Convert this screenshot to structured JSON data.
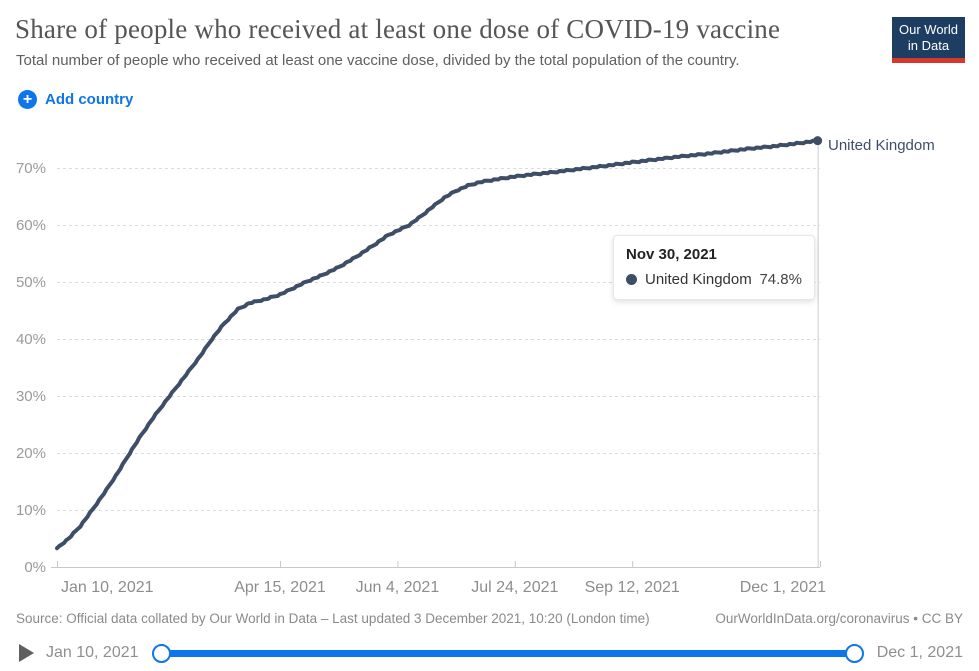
{
  "header": {
    "title": "Share of people who received at least one dose of COVID-19 vaccine",
    "subtitle": "Total number of people who received at least one vaccine dose, divided by the total population of the country.",
    "logo": {
      "line1": "Our World",
      "line2": "in Data"
    }
  },
  "controls": {
    "add_country_label": "Add country",
    "plus_icon": "+"
  },
  "colors": {
    "accent_blue": "#0e76e8",
    "series_line": "#3d4e66",
    "logo_bg": "#1d3d63",
    "logo_red": "#d7382e",
    "grid": "#dcdcdc",
    "axis": "#c8c8c8",
    "y_tick_text": "#9a9a9a",
    "x_tick_text": "#8d8d8d"
  },
  "chart_data": {
    "type": "line",
    "title": "Share of people who received at least one dose of COVID-19 vaccine",
    "xlabel": "",
    "ylabel": "",
    "ylim": [
      0,
      75
    ],
    "grid": "dashed horizontal",
    "legend_position": "end-of-line label",
    "x_start_date": "Jan 10, 2021",
    "x_axis": {
      "unit": "days since Jan 10, 2021",
      "range_days": 325,
      "ticks": [
        {
          "label": "Jan 10, 2021",
          "day": 0
        },
        {
          "label": "Apr 15, 2021",
          "day": 95
        },
        {
          "label": "Jun 4, 2021",
          "day": 145
        },
        {
          "label": "Jul 24, 2021",
          "day": 195
        },
        {
          "label": "Sep 12, 2021",
          "day": 245
        },
        {
          "label": "Dec 1, 2021",
          "day": 325
        }
      ]
    },
    "y_axis": {
      "ticks": [
        "0%",
        "10%",
        "20%",
        "30%",
        "40%",
        "50%",
        "60%",
        "70%"
      ],
      "tick_interval_pct": 10
    },
    "series": [
      {
        "name": "United Kingdom",
        "color": "#3d4e66",
        "points_format": "[day_offset, percent_of_population]",
        "points": [
          [
            0,
            3.3
          ],
          [
            5,
            5.0
          ],
          [
            10,
            7.2
          ],
          [
            15,
            10.0
          ],
          [
            21,
            13.5
          ],
          [
            26,
            16.6
          ],
          [
            31,
            20.0
          ],
          [
            36,
            23.2
          ],
          [
            41,
            26.2
          ],
          [
            48,
            30.0
          ],
          [
            54,
            33.2
          ],
          [
            61,
            37.0
          ],
          [
            66,
            40.0
          ],
          [
            71,
            42.6
          ],
          [
            77,
            45.2
          ],
          [
            82,
            46.3
          ],
          [
            89,
            47.0
          ],
          [
            95,
            47.8
          ],
          [
            101,
            49.0
          ],
          [
            106,
            50.0
          ],
          [
            113,
            51.2
          ],
          [
            120,
            52.6
          ],
          [
            127,
            54.3
          ],
          [
            134,
            56.2
          ],
          [
            141,
            58.2
          ],
          [
            146,
            59.2
          ],
          [
            150,
            60.0
          ],
          [
            155,
            61.5
          ],
          [
            160,
            63.2
          ],
          [
            165,
            64.8
          ],
          [
            170,
            66.0
          ],
          [
            175,
            66.9
          ],
          [
            180,
            67.5
          ],
          [
            187,
            68.0
          ],
          [
            195,
            68.5
          ],
          [
            203,
            68.9
          ],
          [
            210,
            69.2
          ],
          [
            218,
            69.6
          ],
          [
            226,
            70.0
          ],
          [
            234,
            70.4
          ],
          [
            245,
            71.0
          ],
          [
            255,
            71.5
          ],
          [
            265,
            72.0
          ],
          [
            275,
            72.4
          ],
          [
            285,
            72.9
          ],
          [
            295,
            73.4
          ],
          [
            305,
            73.8
          ],
          [
            315,
            74.3
          ],
          [
            324,
            74.8
          ]
        ]
      }
    ],
    "end_label": "United Kingdom",
    "last_point": {
      "date": "Nov 30, 2021",
      "day": 324,
      "value_pct": 74.8
    }
  },
  "tooltip": {
    "date": "Nov 30, 2021",
    "entity": "United Kingdom",
    "value": "74.8%"
  },
  "footer": {
    "source": "Source: Official data collated by Our World in Data – Last updated 3 December 2021, 10:20 (London time)",
    "attribution": "OurWorldInData.org/coronavirus • CC BY"
  },
  "timeline": {
    "start": "Jan 10, 2021",
    "end": "Dec 1, 2021"
  }
}
